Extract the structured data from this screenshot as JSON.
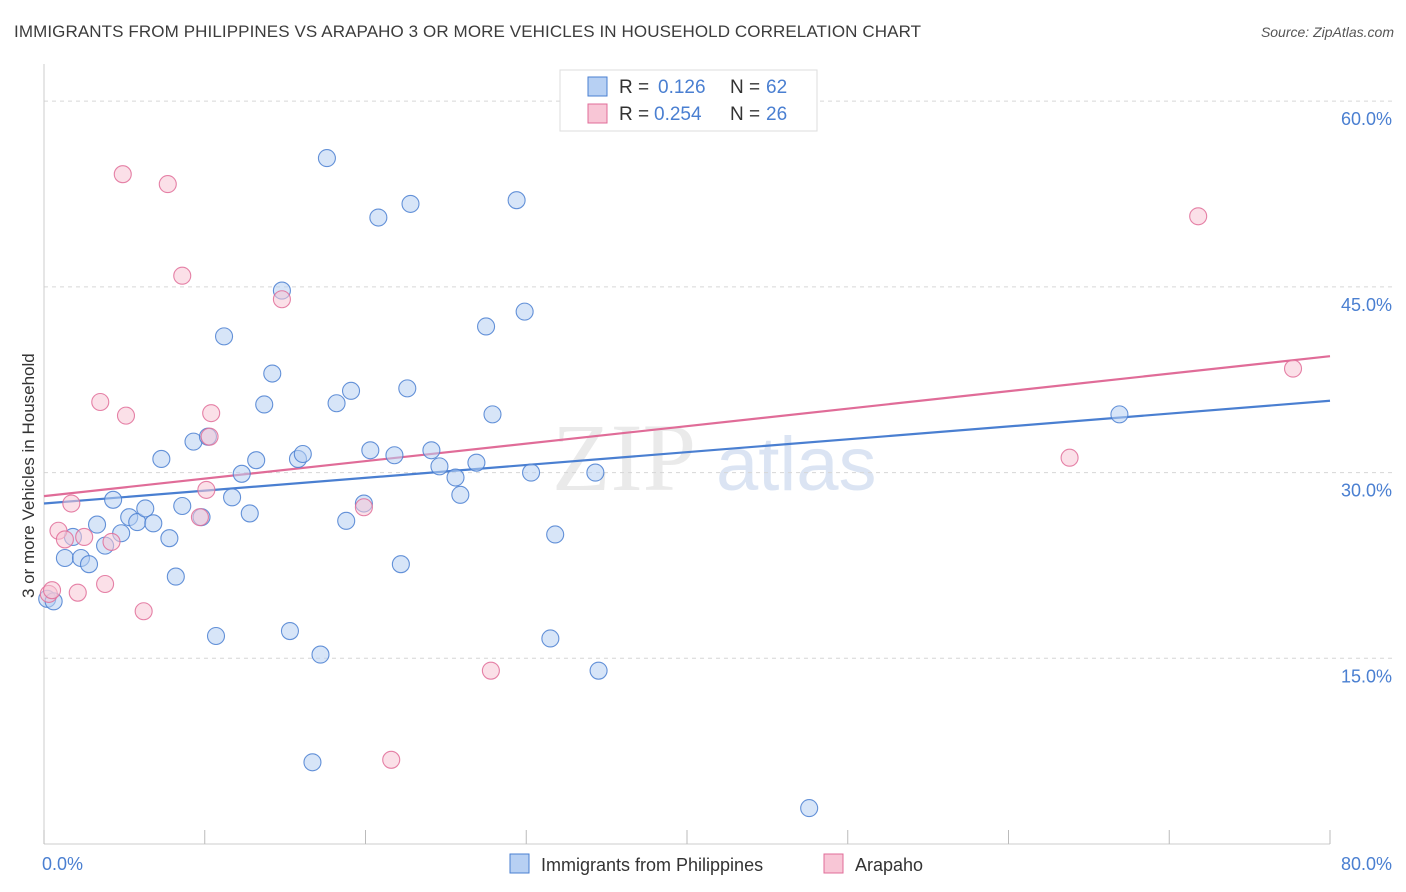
{
  "header": {
    "title": "IMMIGRANTS FROM PHILIPPINES VS ARAPAHO 3 OR MORE VEHICLES IN HOUSEHOLD CORRELATION CHART",
    "source": "Source: ZipAtlas.com"
  },
  "watermark": {
    "part1": "ZIP",
    "part2": "atlas"
  },
  "chart_data": {
    "type": "scatter",
    "title": "IMMIGRANTS FROM PHILIPPINES VS ARAPAHO 3 OR MORE VEHICLES IN HOUSEHOLD CORRELATION CHART",
    "xlabel": "",
    "ylabel": "3 or more Vehicles in Household",
    "xlim": [
      0,
      80
    ],
    "ylim": [
      0,
      63
    ],
    "x_tick_labels": [
      "0.0%",
      "80.0%"
    ],
    "y_ticks": [
      15,
      30,
      45,
      60
    ],
    "y_tick_labels": [
      "15.0%",
      "30.0%",
      "45.0%",
      "60.0%"
    ],
    "legend_position": "top-center",
    "stats": [
      {
        "r_label": "R =",
        "r_value": "0.126",
        "n_label": "N =",
        "n_value": "62"
      },
      {
        "r_label": "R =",
        "r_value": "0.254",
        "n_label": "N =",
        "n_value": "26"
      }
    ],
    "series": [
      {
        "name": "Immigrants from Philippines",
        "color": "#4a7fd1",
        "fill": "#b7d0f3",
        "trend": {
          "x": [
            0,
            80
          ],
          "y": [
            27.5,
            35.8
          ]
        },
        "points": [
          [
            0.2,
            19.8
          ],
          [
            0.6,
            19.6
          ],
          [
            1.3,
            23.1
          ],
          [
            1.8,
            24.8
          ],
          [
            2.3,
            23.1
          ],
          [
            2.8,
            22.6
          ],
          [
            3.3,
            25.8
          ],
          [
            3.8,
            24.1
          ],
          [
            4.3,
            27.8
          ],
          [
            4.8,
            25.1
          ],
          [
            5.3,
            26.4
          ],
          [
            5.8,
            26.0
          ],
          [
            6.3,
            27.1
          ],
          [
            6.8,
            25.9
          ],
          [
            7.3,
            31.1
          ],
          [
            7.8,
            24.7
          ],
          [
            8.2,
            21.6
          ],
          [
            8.6,
            27.3
          ],
          [
            9.3,
            32.5
          ],
          [
            9.8,
            26.4
          ],
          [
            10.2,
            32.9
          ],
          [
            10.7,
            16.8
          ],
          [
            11.2,
            41.0
          ],
          [
            11.7,
            28.0
          ],
          [
            12.3,
            29.9
          ],
          [
            12.8,
            26.7
          ],
          [
            13.2,
            31.0
          ],
          [
            13.7,
            35.5
          ],
          [
            14.2,
            38.0
          ],
          [
            14.8,
            44.7
          ],
          [
            15.3,
            17.2
          ],
          [
            15.8,
            31.1
          ],
          [
            16.1,
            31.5
          ],
          [
            16.7,
            6.6
          ],
          [
            17.2,
            15.3
          ],
          [
            17.6,
            55.4
          ],
          [
            18.2,
            35.6
          ],
          [
            18.8,
            26.1
          ],
          [
            19.1,
            36.6
          ],
          [
            19.9,
            27.5
          ],
          [
            20.3,
            31.8
          ],
          [
            20.8,
            50.6
          ],
          [
            21.8,
            31.4
          ],
          [
            22.2,
            22.6
          ],
          [
            22.6,
            36.8
          ],
          [
            22.8,
            51.7
          ],
          [
            24.1,
            31.8
          ],
          [
            24.6,
            30.5
          ],
          [
            25.6,
            29.6
          ],
          [
            25.9,
            28.2
          ],
          [
            26.9,
            30.8
          ],
          [
            27.5,
            41.8
          ],
          [
            27.9,
            34.7
          ],
          [
            29.4,
            52.0
          ],
          [
            29.9,
            43.0
          ],
          [
            30.3,
            30.0
          ],
          [
            31.5,
            16.6
          ],
          [
            31.8,
            25.0
          ],
          [
            34.3,
            30.0
          ],
          [
            34.5,
            14.0
          ],
          [
            47.6,
            2.9
          ],
          [
            66.9,
            34.7
          ]
        ]
      },
      {
        "name": "Arapaho",
        "color": "#e06c98",
        "fill": "#f8c6d6",
        "trend": {
          "x": [
            0,
            80
          ],
          "y": [
            28.1,
            39.4
          ]
        },
        "points": [
          [
            0.3,
            20.2
          ],
          [
            0.9,
            25.3
          ],
          [
            1.3,
            24.6
          ],
          [
            1.7,
            27.5
          ],
          [
            2.1,
            20.3
          ],
          [
            2.5,
            24.8
          ],
          [
            3.5,
            35.7
          ],
          [
            3.8,
            21.0
          ],
          [
            4.2,
            24.4
          ],
          [
            4.9,
            54.1
          ],
          [
            5.1,
            34.6
          ],
          [
            6.2,
            18.8
          ],
          [
            7.7,
            53.3
          ],
          [
            8.6,
            45.9
          ],
          [
            9.7,
            26.4
          ],
          [
            10.1,
            28.6
          ],
          [
            10.3,
            32.9
          ],
          [
            10.4,
            34.8
          ],
          [
            14.8,
            44.0
          ],
          [
            19.9,
            27.2
          ],
          [
            21.6,
            6.8
          ],
          [
            27.8,
            14.0
          ],
          [
            63.8,
            31.2
          ],
          [
            71.8,
            50.7
          ],
          [
            77.7,
            38.4
          ],
          [
            0.5,
            20.5
          ]
        ]
      }
    ]
  }
}
